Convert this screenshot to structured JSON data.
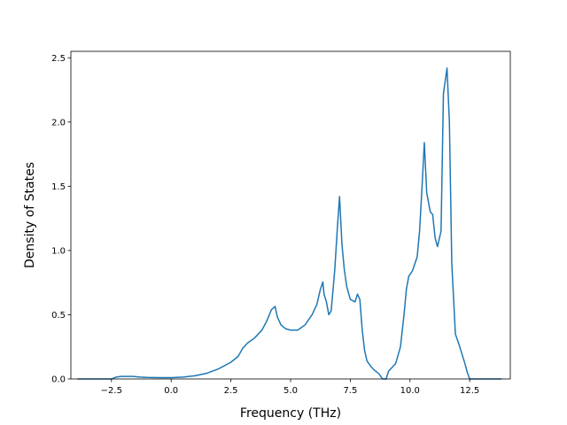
{
  "chart_data": {
    "type": "line",
    "xlabel": "Frequency (THz)",
    "ylabel": "Density of States",
    "xlim": [
      -4.2,
      14.2
    ],
    "ylim": [
      0,
      2.55
    ],
    "xticks": [
      -2.5,
      0.0,
      2.5,
      5.0,
      7.5,
      10.0,
      12.5
    ],
    "xtick_labels": [
      "−2.5",
      "0.0",
      "2.5",
      "5.0",
      "7.5",
      "10.0",
      "12.5"
    ],
    "yticks": [
      0.0,
      0.5,
      1.0,
      1.5,
      2.0,
      2.5
    ],
    "ytick_labels": [
      "0.0",
      "0.5",
      "1.0",
      "1.5",
      "2.0",
      "2.5"
    ],
    "grid": false,
    "series": [
      {
        "color": "#1f77b4",
        "x": [
          -3.9,
          -3.0,
          -2.5,
          -2.3,
          -2.1,
          -1.9,
          -1.6,
          -1.3,
          -1.0,
          -0.5,
          0.0,
          0.5,
          1.0,
          1.5,
          2.0,
          2.5,
          2.8,
          3.0,
          3.2,
          3.5,
          3.8,
          4.0,
          4.2,
          4.35,
          4.45,
          4.6,
          4.8,
          5.0,
          5.3,
          5.6,
          5.9,
          6.1,
          6.25,
          6.35,
          6.4,
          6.5,
          6.6,
          6.7,
          6.85,
          6.95,
          7.05,
          7.15,
          7.25,
          7.35,
          7.5,
          7.7,
          7.8,
          7.9,
          8.0,
          8.1,
          8.2,
          8.35,
          8.5,
          8.7,
          8.85,
          9.0,
          9.1,
          9.2,
          9.4,
          9.6,
          9.75,
          9.85,
          9.95,
          10.1,
          10.3,
          10.4,
          10.5,
          10.6,
          10.7,
          10.85,
          10.95,
          11.05,
          11.15,
          11.3,
          11.4,
          11.55,
          11.65,
          11.75,
          11.9,
          12.05,
          12.3,
          12.4,
          12.5,
          13.0,
          13.8
        ],
        "y": [
          0.0,
          0.0,
          0.0,
          0.015,
          0.02,
          0.02,
          0.02,
          0.015,
          0.012,
          0.01,
          0.01,
          0.015,
          0.025,
          0.045,
          0.08,
          0.13,
          0.175,
          0.24,
          0.28,
          0.32,
          0.38,
          0.45,
          0.54,
          0.565,
          0.48,
          0.42,
          0.39,
          0.38,
          0.38,
          0.42,
          0.5,
          0.58,
          0.7,
          0.755,
          0.66,
          0.6,
          0.5,
          0.53,
          0.85,
          1.15,
          1.42,
          1.05,
          0.85,
          0.72,
          0.62,
          0.6,
          0.66,
          0.62,
          0.38,
          0.22,
          0.14,
          0.1,
          0.07,
          0.04,
          0.0,
          0.0,
          0.06,
          0.08,
          0.12,
          0.25,
          0.5,
          0.7,
          0.8,
          0.84,
          0.95,
          1.15,
          1.48,
          1.84,
          1.45,
          1.3,
          1.28,
          1.1,
          1.03,
          1.15,
          2.22,
          2.42,
          2.0,
          0.9,
          0.35,
          0.27,
          0.12,
          0.05,
          0.0,
          0.0,
          0.0
        ]
      }
    ]
  }
}
